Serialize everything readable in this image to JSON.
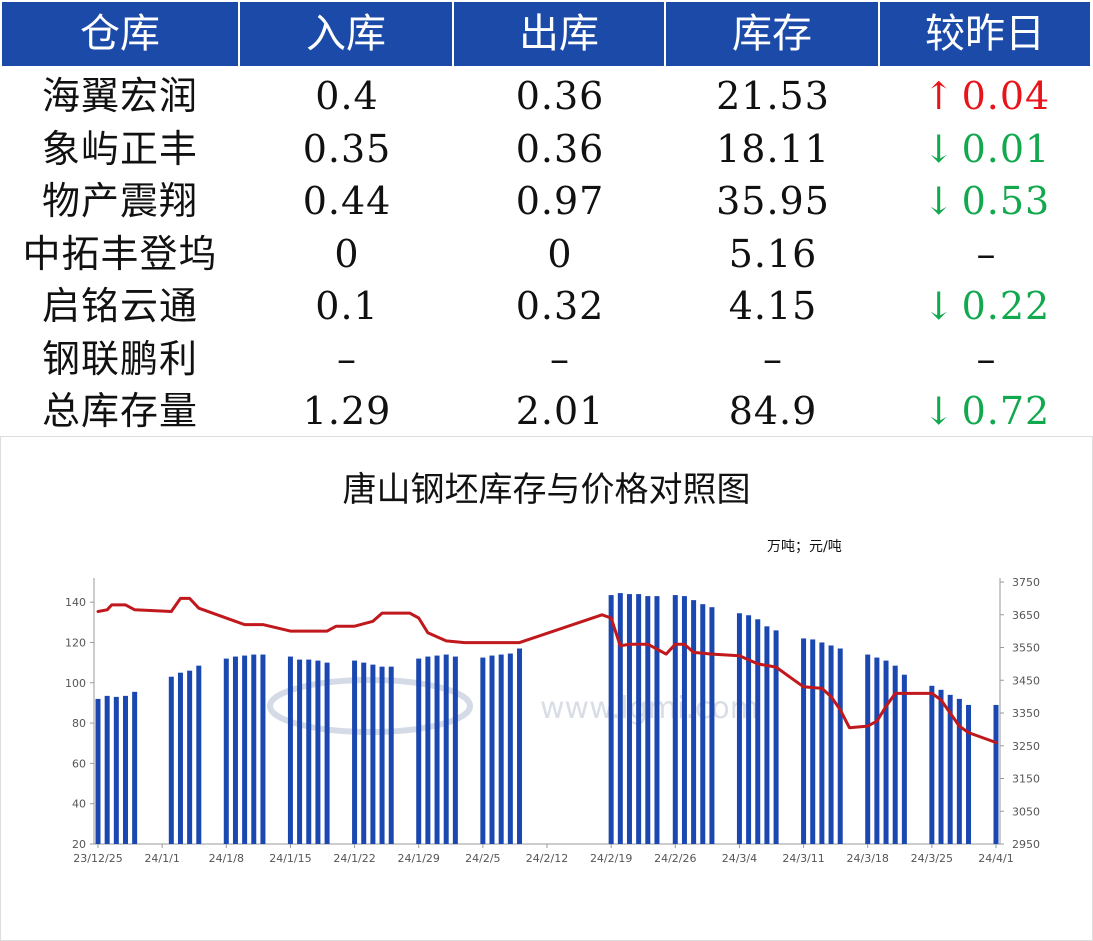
{
  "table": {
    "headers": [
      "仓库",
      "入库",
      "出库",
      "库存",
      "较昨日"
    ],
    "rows": [
      {
        "name": "海翼宏润",
        "in": "0.4",
        "out": "0.36",
        "stock": "21.53",
        "arrow": "↑",
        "change": "0.04",
        "dir": "up"
      },
      {
        "name": "象屿正丰",
        "in": "0.35",
        "out": "0.36",
        "stock": "18.11",
        "arrow": "↓",
        "change": "0.01",
        "dir": "down"
      },
      {
        "name": "物产震翔",
        "in": "0.44",
        "out": "0.97",
        "stock": "35.95",
        "arrow": "↓",
        "change": "0.53",
        "dir": "down"
      },
      {
        "name": "中拓丰登坞",
        "in": "0",
        "out": "0",
        "stock": "5.16",
        "arrow": "",
        "change": "–",
        "dir": "none"
      },
      {
        "name": "启铭云通",
        "in": "0.1",
        "out": "0.32",
        "stock": "4.15",
        "arrow": "↓",
        "change": "0.22",
        "dir": "down"
      },
      {
        "name": "钢联鹏利",
        "in": "–",
        "out": "–",
        "stock": "–",
        "arrow": "",
        "change": "–",
        "dir": "none"
      },
      {
        "name": "总库存量",
        "in": "1.29",
        "out": "2.01",
        "stock": "84.9",
        "arrow": "↓",
        "change": "0.72",
        "dir": "down"
      }
    ]
  },
  "colors": {
    "header_bg": "#1b4aa8",
    "up": "#e8141b",
    "down": "#12a84e",
    "bar": "#1b47b0",
    "line": "#c0181c"
  },
  "chart_data": {
    "type": "bar+line",
    "title": "唐山钢坯库存与价格对照图",
    "unit_label": "万吨；元/吨",
    "watermark": "www.lgmi.com",
    "x_ticks": [
      "23/12/25",
      "24/1/1",
      "24/1/8",
      "24/1/15",
      "24/1/22",
      "24/1/29",
      "24/2/5",
      "24/2/12",
      "24/2/19",
      "24/2/26",
      "24/3/4",
      "24/3/11",
      "24/3/18",
      "24/3/25",
      "24/4/1"
    ],
    "y_left": {
      "ticks": [
        20,
        40,
        60,
        80,
        100,
        120,
        140
      ],
      "range": [
        20,
        150
      ]
    },
    "y_right": {
      "ticks": [
        2950,
        3050,
        3150,
        3250,
        3350,
        3450,
        3550,
        3650,
        3750
      ],
      "range": [
        2950,
        3750
      ]
    },
    "x_range": [
      0,
      98
    ],
    "bars": [
      {
        "x": 0,
        "y": 92
      },
      {
        "x": 1,
        "y": 93.5
      },
      {
        "x": 2,
        "y": 93
      },
      {
        "x": 3,
        "y": 93.5
      },
      {
        "x": 4,
        "y": 95.5
      },
      {
        "x": 8,
        "y": 103
      },
      {
        "x": 9,
        "y": 105
      },
      {
        "x": 10,
        "y": 106
      },
      {
        "x": 11,
        "y": 108.5
      },
      {
        "x": 14,
        "y": 112
      },
      {
        "x": 15,
        "y": 113
      },
      {
        "x": 16,
        "y": 113.5
      },
      {
        "x": 17,
        "y": 114
      },
      {
        "x": 18,
        "y": 114
      },
      {
        "x": 21,
        "y": 113
      },
      {
        "x": 22,
        "y": 111.5
      },
      {
        "x": 23,
        "y": 111.5
      },
      {
        "x": 24,
        "y": 111
      },
      {
        "x": 25,
        "y": 110
      },
      {
        "x": 28,
        "y": 111
      },
      {
        "x": 29,
        "y": 110
      },
      {
        "x": 30,
        "y": 109
      },
      {
        "x": 31,
        "y": 108
      },
      {
        "x": 32,
        "y": 108
      },
      {
        "x": 35,
        "y": 112
      },
      {
        "x": 36,
        "y": 113
      },
      {
        "x": 37,
        "y": 113.5
      },
      {
        "x": 38,
        "y": 114
      },
      {
        "x": 39,
        "y": 113
      },
      {
        "x": 42,
        "y": 112.5
      },
      {
        "x": 43,
        "y": 113.5
      },
      {
        "x": 44,
        "y": 114
      },
      {
        "x": 45,
        "y": 114.5
      },
      {
        "x": 46,
        "y": 117
      },
      {
        "x": 56,
        "y": 143.5
      },
      {
        "x": 57,
        "y": 144.5
      },
      {
        "x": 58,
        "y": 144
      },
      {
        "x": 59,
        "y": 144
      },
      {
        "x": 60,
        "y": 143
      },
      {
        "x": 61,
        "y": 143
      },
      {
        "x": 63,
        "y": 143.5
      },
      {
        "x": 64,
        "y": 143
      },
      {
        "x": 65,
        "y": 141
      },
      {
        "x": 66,
        "y": 139
      },
      {
        "x": 67,
        "y": 137.5
      },
      {
        "x": 70,
        "y": 134.5
      },
      {
        "x": 71,
        "y": 133.5
      },
      {
        "x": 72,
        "y": 131.5
      },
      {
        "x": 73,
        "y": 128
      },
      {
        "x": 74,
        "y": 126
      },
      {
        "x": 77,
        "y": 122
      },
      {
        "x": 78,
        "y": 121.5
      },
      {
        "x": 79,
        "y": 120
      },
      {
        "x": 80,
        "y": 118.5
      },
      {
        "x": 81,
        "y": 117
      },
      {
        "x": 84,
        "y": 114
      },
      {
        "x": 85,
        "y": 112.5
      },
      {
        "x": 86,
        "y": 111
      },
      {
        "x": 87,
        "y": 108.5
      },
      {
        "x": 88,
        "y": 104
      },
      {
        "x": 91,
        "y": 98.5
      },
      {
        "x": 92,
        "y": 96.5
      },
      {
        "x": 93,
        "y": 94
      },
      {
        "x": 94,
        "y": 92
      },
      {
        "x": 95,
        "y": 89
      },
      {
        "x": 98,
        "y": 89
      }
    ],
    "price_line": [
      {
        "x": 0,
        "y": 3660
      },
      {
        "x": 1,
        "y": 3665
      },
      {
        "x": 1.5,
        "y": 3680
      },
      {
        "x": 3,
        "y": 3680
      },
      {
        "x": 4,
        "y": 3665
      },
      {
        "x": 8,
        "y": 3660
      },
      {
        "x": 9,
        "y": 3700
      },
      {
        "x": 10,
        "y": 3700
      },
      {
        "x": 11,
        "y": 3670
      },
      {
        "x": 15,
        "y": 3630
      },
      {
        "x": 16,
        "y": 3620
      },
      {
        "x": 18,
        "y": 3620
      },
      {
        "x": 21,
        "y": 3600
      },
      {
        "x": 25,
        "y": 3600
      },
      {
        "x": 26,
        "y": 3615
      },
      {
        "x": 28,
        "y": 3615
      },
      {
        "x": 30,
        "y": 3630
      },
      {
        "x": 31,
        "y": 3655
      },
      {
        "x": 34,
        "y": 3655
      },
      {
        "x": 35,
        "y": 3640
      },
      {
        "x": 36,
        "y": 3595
      },
      {
        "x": 38,
        "y": 3570
      },
      {
        "x": 40,
        "y": 3565
      },
      {
        "x": 45,
        "y": 3565
      },
      {
        "x": 46,
        "y": 3565
      },
      {
        "x": 55,
        "y": 3650
      },
      {
        "x": 56,
        "y": 3640
      },
      {
        "x": 57,
        "y": 3555
      },
      {
        "x": 58,
        "y": 3560
      },
      {
        "x": 60,
        "y": 3560
      },
      {
        "x": 62,
        "y": 3530
      },
      {
        "x": 63,
        "y": 3560
      },
      {
        "x": 64,
        "y": 3560
      },
      {
        "x": 65,
        "y": 3535
      },
      {
        "x": 67,
        "y": 3530
      },
      {
        "x": 70,
        "y": 3525
      },
      {
        "x": 72,
        "y": 3500
      },
      {
        "x": 74,
        "y": 3490
      },
      {
        "x": 76,
        "y": 3450
      },
      {
        "x": 77,
        "y": 3430
      },
      {
        "x": 79,
        "y": 3425
      },
      {
        "x": 80,
        "y": 3400
      },
      {
        "x": 81,
        "y": 3360
      },
      {
        "x": 82,
        "y": 3305
      },
      {
        "x": 84,
        "y": 3310
      },
      {
        "x": 85,
        "y": 3325
      },
      {
        "x": 86,
        "y": 3370
      },
      {
        "x": 87,
        "y": 3410
      },
      {
        "x": 91,
        "y": 3410
      },
      {
        "x": 92,
        "y": 3390
      },
      {
        "x": 94,
        "y": 3310
      },
      {
        "x": 95,
        "y": 3290
      },
      {
        "x": 98,
        "y": 3260
      }
    ]
  }
}
